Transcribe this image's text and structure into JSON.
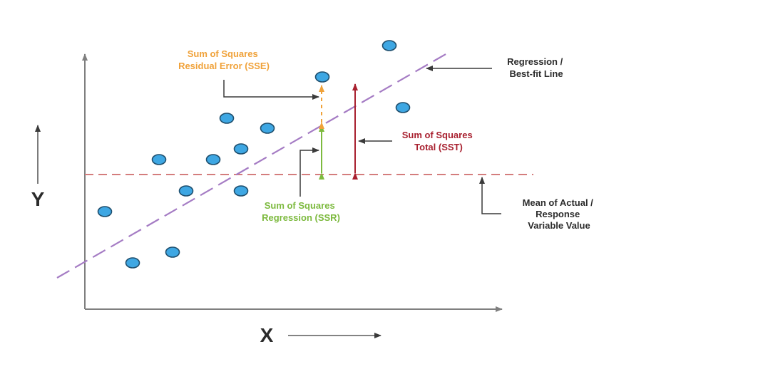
{
  "colors": {
    "axis": "#7f7f7f",
    "point_fill": "#3ea7e3",
    "point_stroke": "#1f4f6e",
    "regression_line": "#a57cc4",
    "mean_line": "#d47d7d",
    "sse": "#f0a23a",
    "ssr": "#7dba3f",
    "sst": "#a8202f",
    "callout_arrow": "#3a3a3a",
    "text_dark": "#2b2b2b"
  },
  "axes": {
    "x_label": "X",
    "y_label": "Y"
  },
  "labels": {
    "sse": [
      "Sum of Squares",
      "Residual Error (SSE)"
    ],
    "ssr": [
      "Sum of Squares",
      "Regression (SSR)"
    ],
    "sst": [
      "Sum of Squares",
      "Total (SST)"
    ],
    "regression_line": [
      "Regression /",
      "Best-fit Line"
    ],
    "mean": [
      "Mean of Actual /",
      "Response",
      "Variable Value"
    ]
  },
  "icons": {
    "x_direction": "arrow-right-icon",
    "y_direction": "arrow-up-icon"
  }
}
